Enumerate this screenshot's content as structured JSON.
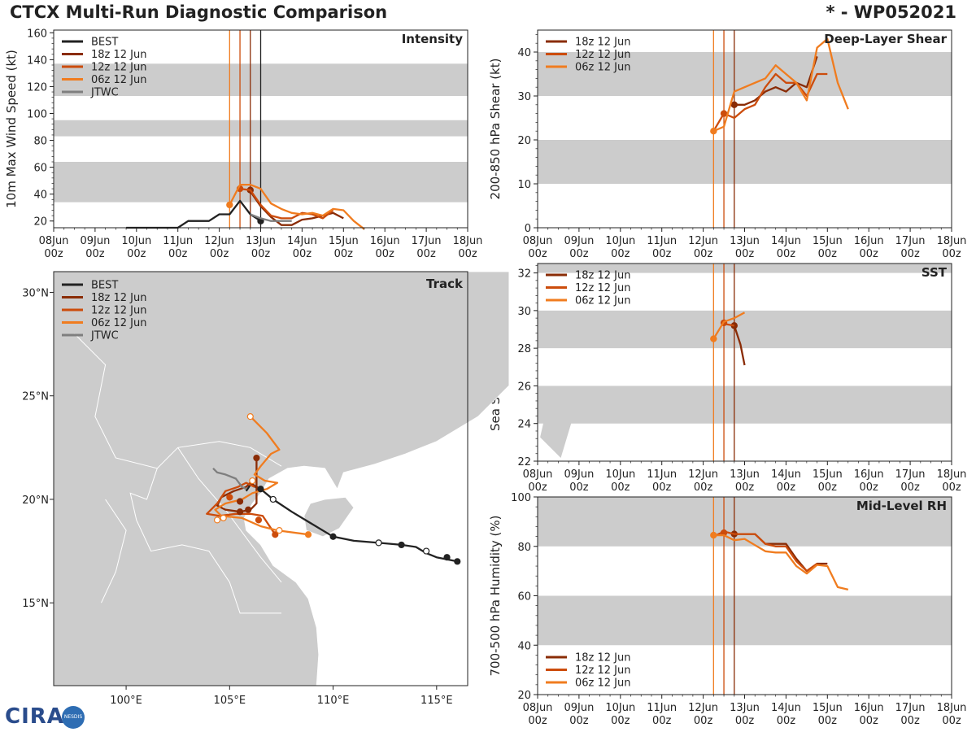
{
  "header": {
    "title": "CTCX Multi-Run Diagnostic Comparison",
    "storm_id": "* - WP052021"
  },
  "logo": {
    "text": "CIRA",
    "badge": "NESDIS"
  },
  "colors": {
    "best": "#222222",
    "run18": "#8a2c06",
    "run12": "#cc4c0c",
    "run06": "#f07c1f",
    "jtwc": "#7f7f7f",
    "band": "#cccccc",
    "land": "#cccccc"
  },
  "time_axis": {
    "ticks": [
      "08Jun\n00z",
      "09Jun\n00z",
      "10Jun\n00z",
      "11Jun\n00z",
      "12Jun\n00z",
      "13Jun\n00z",
      "14Jun\n00z",
      "15Jun\n00z",
      "16Jun\n00z",
      "17Jun\n00z",
      "18Jun\n00z"
    ],
    "range": [
      0,
      10
    ],
    "vlines": [
      {
        "x": 4.25,
        "series": "run06"
      },
      {
        "x": 4.5,
        "series": "run12"
      },
      {
        "x": 4.75,
        "series": "run18"
      },
      {
        "x": 5.0,
        "series": "best"
      }
    ]
  },
  "chart_data": [
    {
      "id": "intensity",
      "type": "line",
      "title": "Intensity",
      "ylabel": "10m Max Wind Speed (kt)",
      "ylim": [
        15,
        162
      ],
      "yticks": [
        20,
        40,
        60,
        80,
        100,
        120,
        140,
        160
      ],
      "bands": [
        [
          34,
          64
        ],
        [
          83,
          95
        ],
        [
          113,
          137
        ]
      ],
      "legend": [
        "BEST",
        "18z 12 Jun",
        "12z 12 Jun",
        "06z 12 Jun",
        "JTWC"
      ],
      "series": [
        {
          "name": "BEST",
          "key": "best",
          "x": [
            1.75,
            3,
            3.25,
            3.75,
            4,
            4.25,
            4.5,
            4.75,
            5
          ],
          "y": [
            15,
            15,
            20,
            20,
            25,
            25,
            35,
            25,
            20
          ],
          "markers": [
            {
              "x": 5,
              "y": 20,
              "fill": true
            }
          ]
        },
        {
          "name": "18z 12 Jun",
          "key": "run18",
          "x": [
            4.75,
            5,
            5.25,
            5.5,
            5.75,
            6,
            6.25,
            6.5,
            6.75,
            7
          ],
          "y": [
            42,
            31,
            23,
            17,
            17,
            21,
            22,
            24,
            26,
            22
          ],
          "markers": [
            {
              "x": 4.75,
              "y": 43,
              "fill": true
            }
          ]
        },
        {
          "name": "12z 12 Jun",
          "key": "run12",
          "x": [
            4.5,
            4.75,
            5,
            5.25,
            5.5,
            5.75,
            6,
            6.25,
            6.5,
            6.75
          ],
          "y": [
            44,
            43,
            32,
            24,
            22,
            22,
            26,
            25,
            22,
            28
          ],
          "markers": [
            {
              "x": 4.5,
              "y": 44,
              "fill": true
            }
          ]
        },
        {
          "name": "06z 12 Jun",
          "key": "run06",
          "x": [
            4.25,
            4.5,
            4.75,
            5,
            5.25,
            5.5,
            5.75,
            6,
            6.25,
            6.5,
            6.75,
            7,
            7.25,
            7.5
          ],
          "y": [
            32,
            47,
            47,
            44,
            33,
            29,
            26,
            25,
            26,
            24,
            29,
            28,
            20,
            14
          ],
          "markers": [
            {
              "x": 4.25,
              "y": 32,
              "fill": true
            }
          ]
        },
        {
          "name": "JTWC",
          "key": "jtwc",
          "x": [
            4.75,
            5,
            5.25,
            5.5,
            5.75
          ],
          "y": [
            25,
            22,
            20,
            20,
            20
          ],
          "markers": []
        }
      ]
    },
    {
      "id": "shear",
      "type": "line",
      "title": "Deep-Layer Shear",
      "ylabel": "200-850 hPa Shear (kt)",
      "ylim": [
        0,
        45
      ],
      "yticks": [
        0,
        10,
        20,
        30,
        40
      ],
      "bands": [
        [
          10,
          20
        ],
        [
          30,
          40
        ]
      ],
      "legend": [
        "18z 12 Jun",
        "12z 12 Jun",
        "06z 12 Jun"
      ],
      "series": [
        {
          "name": "18z 12 Jun",
          "key": "run18",
          "x": [
            4.75,
            5,
            5.25,
            5.5,
            5.75,
            6,
            6.25,
            6.5,
            6.75
          ],
          "y": [
            28,
            28,
            29,
            31,
            32,
            31,
            33,
            32,
            39
          ],
          "markers": [
            {
              "x": 4.75,
              "y": 28,
              "fill": true
            }
          ]
        },
        {
          "name": "12z 12 Jun",
          "key": "run12",
          "x": [
            4.25,
            4.5,
            4.75,
            5,
            5.25,
            5.5,
            5.75,
            6,
            6.25,
            6.5,
            6.75,
            7
          ],
          "y": [
            22,
            26,
            25,
            27,
            28,
            32,
            35,
            33,
            33,
            30,
            35,
            35
          ],
          "markers": [
            {
              "x": 4.5,
              "y": 26,
              "fill": true
            }
          ]
        },
        {
          "name": "06z 12 Jun",
          "key": "run06",
          "x": [
            4.25,
            4.5,
            4.75,
            5,
            5.25,
            5.5,
            5.75,
            6,
            6.25,
            6.5,
            6.75,
            7,
            7.25,
            7.5
          ],
          "y": [
            22,
            23,
            31,
            32,
            33,
            34,
            37,
            35,
            33,
            29,
            41,
            43,
            33,
            27
          ],
          "markers": [
            {
              "x": 4.25,
              "y": 22,
              "fill": true
            }
          ]
        }
      ]
    },
    {
      "id": "sst",
      "type": "line",
      "title": "SST",
      "ylabel": "Sea Surface Temp (°C)",
      "ylim": [
        22,
        32.5
      ],
      "yticks": [
        22,
        24,
        26,
        28,
        30,
        32
      ],
      "bands": [
        [
          24,
          26
        ],
        [
          28,
          30
        ],
        [
          32,
          32.5
        ]
      ],
      "legend": [
        "18z 12 Jun",
        "12z 12 Jun",
        "06z 12 Jun"
      ],
      "series": [
        {
          "name": "18z 12 Jun",
          "key": "run18",
          "x": [
            4.75,
            4.9,
            5.0
          ],
          "y": [
            29.2,
            28.2,
            27.1
          ],
          "markers": [
            {
              "x": 4.75,
              "y": 29.2,
              "fill": true
            }
          ]
        },
        {
          "name": "12z 12 Jun",
          "key": "run12",
          "x": [
            4.5,
            4.75
          ],
          "y": [
            29.3,
            29.2
          ],
          "markers": [
            {
              "x": 4.5,
              "y": 29.35,
              "fill": true
            }
          ]
        },
        {
          "name": "06z 12 Jun",
          "key": "run06",
          "x": [
            4.25,
            4.5,
            4.75,
            5.0
          ],
          "y": [
            28.5,
            29.4,
            29.6,
            29.9
          ],
          "markers": [
            {
              "x": 4.25,
              "y": 28.5,
              "fill": true
            }
          ]
        }
      ]
    },
    {
      "id": "rh",
      "type": "line",
      "title": "Mid-Level RH",
      "ylabel": "700-500 hPa Humidity (%)",
      "ylim": [
        20,
        100
      ],
      "yticks": [
        20,
        40,
        60,
        80,
        100
      ],
      "bands": [
        [
          40,
          60
        ],
        [
          80,
          100
        ]
      ],
      "legend": [
        "18z 12 Jun",
        "12z 12 Jun",
        "06z 12 Jun"
      ],
      "series": [
        {
          "name": "18z 12 Jun",
          "key": "run18",
          "x": [
            4.75,
            5,
            5.25,
            5.5,
            5.75,
            6,
            6.25,
            6.5,
            6.75,
            7
          ],
          "y": [
            85,
            85,
            85,
            81,
            81,
            81,
            75,
            70,
            73,
            73
          ],
          "markers": [
            {
              "x": 4.75,
              "y": 85,
              "fill": true
            }
          ]
        },
        {
          "name": "12z 12 Jun",
          "key": "run12",
          "x": [
            4.25,
            4.5,
            4.75,
            5,
            5.25,
            5.5,
            5.75,
            6,
            6.25,
            6.5,
            6.75
          ],
          "y": [
            84,
            86,
            85,
            85,
            85,
            81,
            80,
            80,
            74,
            70,
            73
          ],
          "markers": [
            {
              "x": 4.5,
              "y": 85.5,
              "fill": true
            }
          ]
        },
        {
          "name": "06z 12 Jun",
          "key": "run06",
          "x": [
            4.25,
            4.5,
            4.75,
            5,
            5.25,
            5.5,
            5.75,
            6,
            6.25,
            6.5,
            6.75,
            7,
            7.25,
            7.5
          ],
          "y": [
            84.5,
            84.5,
            82.5,
            83,
            80.5,
            78,
            77.5,
            77.5,
            72,
            69,
            72.5,
            72,
            63.5,
            62.5
          ],
          "markers": [
            {
              "x": 4.25,
              "y": 84.5,
              "fill": true
            }
          ]
        }
      ]
    },
    {
      "id": "track",
      "type": "scatter",
      "title": "Track",
      "lon_range": [
        96.5,
        116.5
      ],
      "lat_range": [
        11,
        31
      ],
      "xticks": [
        {
          "v": 100,
          "label": "100°E"
        },
        {
          "v": 105,
          "label": "105°E"
        },
        {
          "v": 110,
          "label": "110°E"
        },
        {
          "v": 115,
          "label": "115°E"
        }
      ],
      "yticks": [
        {
          "v": 15,
          "label": "15°N"
        },
        {
          "v": 20,
          "label": "20°N"
        },
        {
          "v": 25,
          "label": "25°N"
        },
        {
          "v": 30,
          "label": "30°N"
        }
      ],
      "legend": [
        "BEST",
        "18z 12 Jun",
        "12z 12 Jun",
        "06z 12 Jun",
        "JTWC"
      ],
      "series": [
        {
          "name": "BEST",
          "key": "best",
          "lon": [
            116.0,
            115.5,
            115.0,
            114.5,
            114.0,
            113.3,
            112.2,
            111.0,
            110.0,
            109.0,
            108.0,
            107.1,
            106.5,
            106.0,
            105.8
          ],
          "lat": [
            17.0,
            17.1,
            17.2,
            17.4,
            17.7,
            17.8,
            17.9,
            18.0,
            18.2,
            18.8,
            19.4,
            20.0,
            20.5,
            20.7,
            20.4
          ],
          "markers": [
            {
              "lon": 116.0,
              "lat": 17.0,
              "fill": true
            },
            {
              "lon": 115.5,
              "lat": 17.2,
              "fill": true
            },
            {
              "lon": 114.5,
              "lat": 17.5,
              "fill": false
            },
            {
              "lon": 113.3,
              "lat": 17.8,
              "fill": true
            },
            {
              "lon": 112.2,
              "lat": 17.9,
              "fill": false
            },
            {
              "lon": 110.0,
              "lat": 18.2,
              "fill": true
            },
            {
              "lon": 107.1,
              "lat": 20.0,
              "fill": false
            },
            {
              "lon": 106.5,
              "lat": 20.5,
              "fill": true
            }
          ]
        },
        {
          "name": "18z 12 Jun",
          "key": "run18",
          "lon": [
            106.5,
            106.3,
            106.0,
            105.8,
            105.2,
            104.6,
            104.4,
            104.8,
            105.5,
            106.0,
            106.3,
            106.3
          ],
          "lat": [
            20.5,
            20.6,
            20.8,
            20.6,
            20.4,
            20.1,
            19.7,
            19.5,
            19.4,
            19.5,
            19.8,
            22.0
          ],
          "markers": [
            {
              "lon": 106.3,
              "lat": 22.0,
              "fill": true
            },
            {
              "lon": 105.5,
              "lat": 19.4,
              "fill": true
            },
            {
              "lon": 105.9,
              "lat": 19.5,
              "fill": true
            },
            {
              "lon": 105.5,
              "lat": 19.9,
              "fill": true
            }
          ]
        },
        {
          "name": "12z 12 Jun",
          "key": "run12",
          "lon": [
            106.2,
            105.8,
            105.4,
            104.8,
            104.4,
            103.9,
            104.5,
            105.3,
            106.0,
            106.6,
            107.2
          ],
          "lat": [
            20.6,
            20.8,
            20.6,
            20.4,
            19.8,
            19.3,
            19.2,
            19.3,
            19.3,
            19.2,
            18.3
          ],
          "markers": [
            {
              "lon": 107.2,
              "lat": 18.3,
              "fill": true
            },
            {
              "lon": 106.4,
              "lat": 19.0,
              "fill": true
            },
            {
              "lon": 105.0,
              "lat": 20.1,
              "fill": true
            }
          ]
        },
        {
          "name": "06z 12 Jun",
          "key": "run06",
          "lon": [
            108.8,
            107.3,
            106.5,
            105.6,
            104.6,
            104.3,
            104.8,
            105.6,
            106.1,
            106.8,
            107.3,
            106.7,
            106.2,
            106.5,
            107.0,
            107.4,
            106.8,
            106.0
          ],
          "lat": [
            18.3,
            18.5,
            18.7,
            19.1,
            19.2,
            19.5,
            19.8,
            20.0,
            20.3,
            20.5,
            20.8,
            20.9,
            21.2,
            21.6,
            22.2,
            22.4,
            23.2,
            24.0
          ],
          "markers": [
            {
              "lon": 108.8,
              "lat": 18.3,
              "fill": true
            },
            {
              "lon": 107.4,
              "lat": 18.5,
              "fill": false
            },
            {
              "lon": 104.4,
              "lat": 19.0,
              "fill": false
            },
            {
              "lon": 104.7,
              "lat": 19.1,
              "fill": false
            },
            {
              "lon": 106.1,
              "lat": 20.9,
              "fill": false
            },
            {
              "lon": 106.0,
              "lat": 24.0,
              "fill": false
            }
          ]
        },
        {
          "name": "JTWC",
          "key": "jtwc",
          "lon": [
            105.8,
            105.6,
            105.3,
            104.8,
            104.4,
            104.2
          ],
          "lat": [
            20.5,
            20.6,
            21.0,
            21.2,
            21.3,
            21.5
          ],
          "markers": []
        }
      ]
    }
  ]
}
